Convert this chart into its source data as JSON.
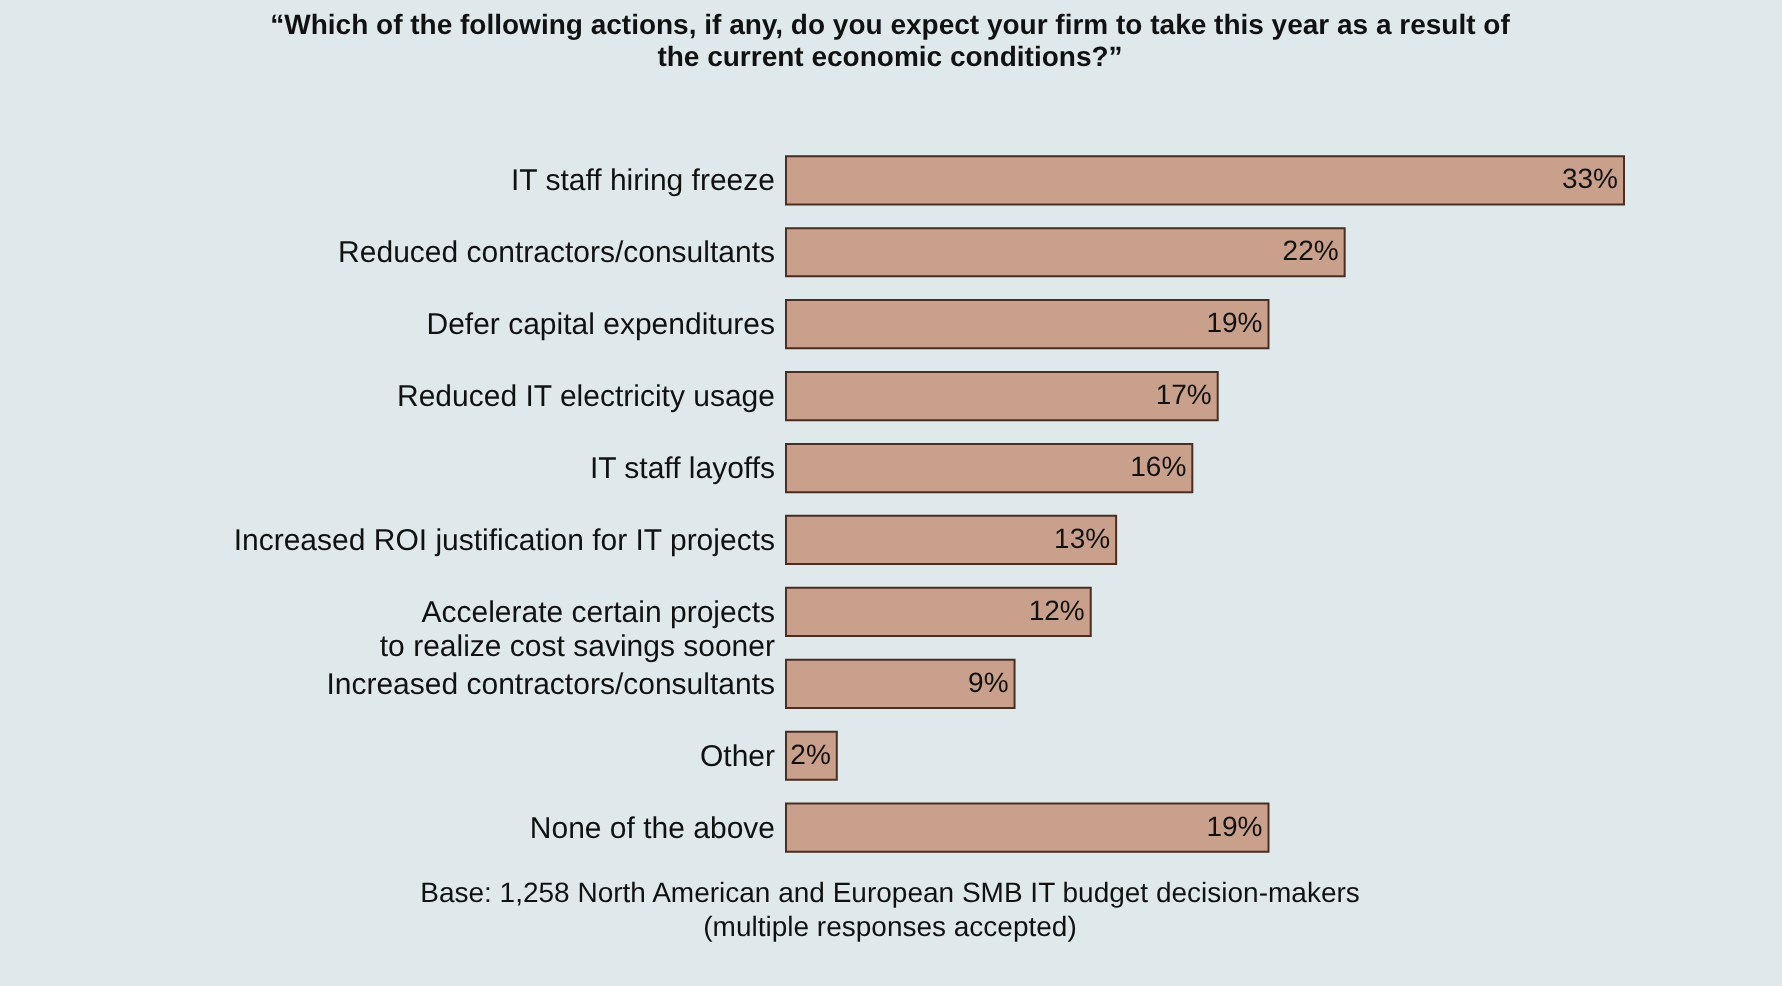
{
  "chart_data": {
    "type": "bar",
    "orientation": "horizontal",
    "title": "“Which of the following actions, if any, do you expect your firm to take this year as a result of\nthe current economic conditions?”",
    "categories": [
      "IT staff hiring freeze",
      "Reduced contractors/consultants",
      "Defer capital expenditures",
      "Reduced IT electricity usage",
      "IT staff layoffs",
      "Increased ROI justification for IT projects",
      "Accelerate certain projects\nto realize cost savings sooner",
      "Increased contractors/consultants",
      "Other",
      "None of the above"
    ],
    "values": [
      33,
      22,
      19,
      17,
      16,
      13,
      12,
      9,
      2,
      19
    ],
    "value_labels": [
      "33%",
      "22%",
      "19%",
      "17%",
      "16%",
      "13%",
      "12%",
      "9%",
      "2%",
      "19%"
    ],
    "color": "#c9a08c",
    "annotations": [
      "Base: 1,258 North American and European SMB IT budget decision-makers\n(multiple responses accepted)"
    ]
  }
}
